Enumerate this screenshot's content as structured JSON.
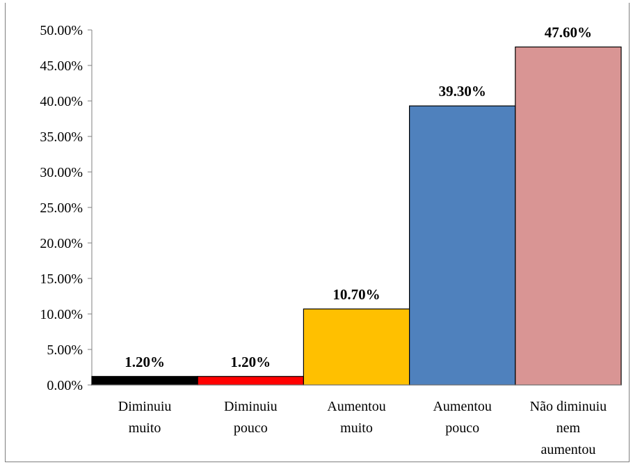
{
  "chart_data": {
    "type": "bar",
    "categories": [
      [
        "Diminuiu",
        "muito"
      ],
      [
        "Diminuiu",
        "pouco"
      ],
      [
        "Aumentou",
        "muito"
      ],
      [
        "Aumentou",
        "pouco"
      ],
      [
        "Não diminuiu",
        "nem",
        "aumentou"
      ]
    ],
    "values": [
      1.2,
      1.2,
      10.7,
      39.3,
      47.6
    ],
    "data_labels": [
      "1.20%",
      "1.20%",
      "10.70%",
      "39.30%",
      "47.60%"
    ],
    "colors": [
      "#000000",
      "#ff0000",
      "#ffc000",
      "#4f81bd",
      "#d99594"
    ],
    "ylim": [
      0,
      50
    ],
    "yticks": [
      0,
      5,
      10,
      15,
      20,
      25,
      30,
      35,
      40,
      45,
      50
    ],
    "ytick_labels": [
      "0.00%",
      "5.00%",
      "10.00%",
      "15.00%",
      "20.00%",
      "25.00%",
      "30.00%",
      "35.00%",
      "40.00%",
      "45.00%",
      "50.00%"
    ],
    "grid": false,
    "legend": "none",
    "title": "",
    "xlabel": "",
    "ylabel": ""
  }
}
